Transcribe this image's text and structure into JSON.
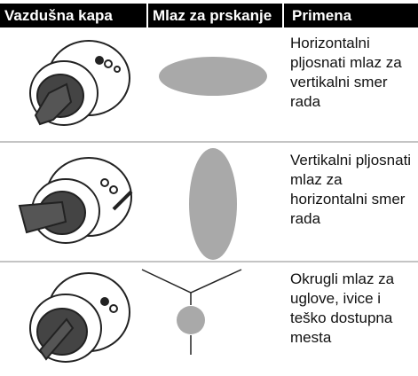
{
  "table": {
    "header": [
      "Vazdušna kapa",
      "Mlaz za prskanje",
      "Primena"
    ],
    "rows": [
      {
        "usage": [
          "Horizontalni",
          "pljosnati mlaz za",
          "vertikalni smer",
          "rada"
        ]
      },
      {
        "usage": [
          "Vertikalni pljosnati",
          "mlaz za",
          "horizontalni smer",
          "rada"
        ]
      },
      {
        "usage": [
          "Okrugli mlaz za",
          "uglove, ivice i",
          "teško dostupna",
          "mesta"
        ]
      }
    ]
  }
}
